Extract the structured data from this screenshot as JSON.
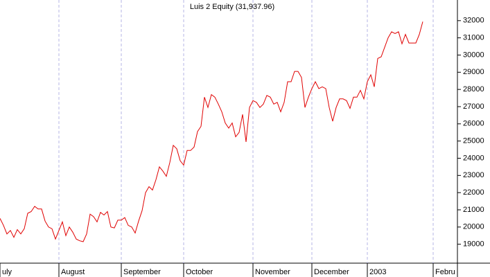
{
  "chart_data": {
    "type": "line",
    "title": "Luis 2 Equity (31,937.96)",
    "categories": [
      "uly",
      null,
      null,
      null,
      null,
      null,
      null,
      null,
      null,
      null,
      null,
      null,
      null,
      null,
      null,
      null,
      null,
      "August",
      null,
      null,
      null,
      null,
      null,
      null,
      null,
      null,
      null,
      null,
      null,
      null,
      null,
      null,
      null,
      null,
      null,
      "September",
      null,
      null,
      null,
      null,
      null,
      null,
      null,
      null,
      null,
      null,
      null,
      null,
      null,
      null,
      null,
      null,
      null,
      "October",
      null,
      null,
      null,
      null,
      null,
      null,
      null,
      null,
      null,
      null,
      null,
      null,
      null,
      null,
      null,
      null,
      null,
      null,
      null,
      "November",
      null,
      null,
      null,
      null,
      null,
      null,
      null,
      null,
      null,
      null,
      null,
      null,
      null,
      null,
      null,
      null,
      "December",
      null,
      null,
      null,
      null,
      null,
      null,
      null,
      null,
      null,
      null,
      null,
      null,
      null,
      null,
      null,
      "2003",
      null,
      null,
      null,
      null,
      null,
      null,
      null,
      null,
      null,
      null,
      null,
      null,
      null,
      null,
      null,
      null,
      null,
      null,
      "Febru"
    ],
    "values": [
      20500,
      20100,
      19600,
      19800,
      19400,
      19850,
      19600,
      19900,
      20800,
      20900,
      21200,
      21050,
      21050,
      20350,
      20000,
      19900,
      19300,
      19800,
      20300,
      19500,
      20000,
      19700,
      19300,
      19200,
      19150,
      19600,
      20750,
      20600,
      20300,
      20850,
      20700,
      20900,
      20000,
      19950,
      20400,
      20400,
      20550,
      20100,
      20000,
      19650,
      20350,
      20950,
      22000,
      22350,
      22150,
      22750,
      23500,
      23250,
      22950,
      23750,
      24750,
      24550,
      23850,
      23600,
      24450,
      24450,
      24650,
      25550,
      25850,
      27550,
      26950,
      27700,
      27550,
      27150,
      26700,
      26050,
      25750,
      26050,
      25250,
      25500,
      26550,
      24950,
      26950,
      27350,
      27250,
      26950,
      27150,
      27650,
      27550,
      27150,
      27250,
      26700,
      27250,
      28450,
      28450,
      29050,
      29050,
      28700,
      26950,
      27550,
      28050,
      28450,
      28050,
      28150,
      28050,
      26950,
      26150,
      26950,
      27450,
      27450,
      27350,
      26900,
      27550,
      27550,
      27950,
      27450,
      28450,
      28850,
      28150,
      29800,
      29900,
      30450,
      31000,
      31350,
      31250,
      31350,
      30650,
      31200,
      30700,
      30700,
      30700,
      31200,
      31937.96,
      null,
      null,
      null
    ],
    "color": "#e00000",
    "ylim": [
      17900,
      33200
    ],
    "yticks": [
      19000,
      20000,
      21000,
      22000,
      23000,
      24000,
      25000,
      26000,
      27000,
      28000,
      29000,
      30000,
      31000,
      32000
    ],
    "grid": true
  }
}
